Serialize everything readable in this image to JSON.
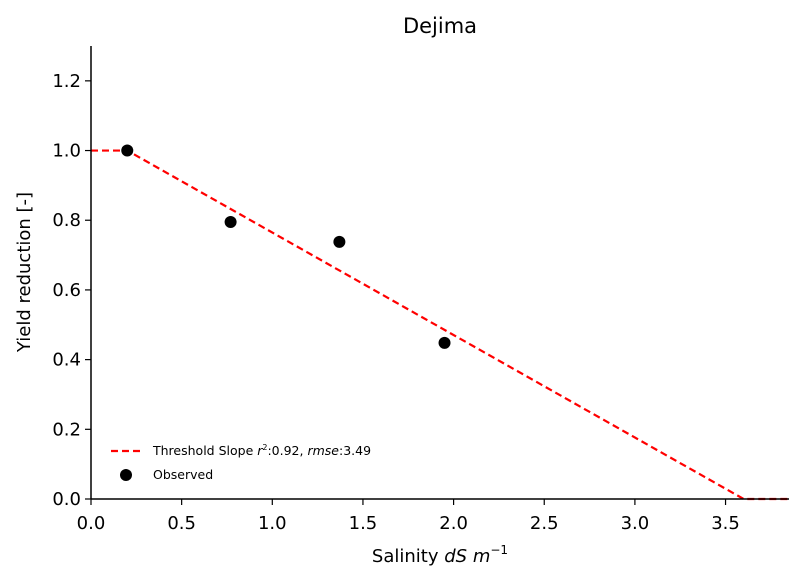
{
  "chart_data": {
    "type": "scatter",
    "title": "Dejima",
    "xlabel": "Salinity dS m⁻¹",
    "xlabel_parts": {
      "prefix": "Salinity ",
      "var1": "dS",
      "space": " ",
      "var2": "m",
      "exp": "−1"
    },
    "ylabel": "Yield reduction [-]",
    "xlim": [
      0.0,
      3.85
    ],
    "ylim": [
      0.0,
      1.3
    ],
    "xticks": [
      0.0,
      0.5,
      1.0,
      1.5,
      2.0,
      2.5,
      3.0,
      3.5
    ],
    "xtick_labels": [
      "0.0",
      "0.5",
      "1.0",
      "1.5",
      "2.0",
      "2.5",
      "3.0",
      "3.5"
    ],
    "yticks": [
      0.0,
      0.2,
      0.4,
      0.6,
      0.8,
      1.0,
      1.2
    ],
    "ytick_labels": [
      "0.0",
      "0.2",
      "0.4",
      "0.6",
      "0.8",
      "1.0",
      "1.2"
    ],
    "grid": false,
    "legend_position": "lower-left",
    "series": [
      {
        "name": "Threshold Slope",
        "kind": "line",
        "style": "dashed",
        "color": "#ff0000",
        "x": [
          0.0,
          0.2,
          3.6,
          3.85
        ],
        "y": [
          1.0,
          1.0,
          0.0,
          0.0
        ]
      },
      {
        "name": "Observed",
        "kind": "scatter",
        "color": "#000000",
        "x": [
          0.2,
          0.77,
          1.37,
          1.95
        ],
        "y": [
          1.0,
          0.795,
          0.738,
          0.448
        ]
      }
    ],
    "legend": {
      "line_label_prefix": "Threshold Slope ",
      "r2_symbol": "r",
      "r2_exp": "2",
      "r2_value": ":0.92, ",
      "rmse_symbol": "rmse",
      "rmse_value": ":3.49",
      "scatter_label": "Observed"
    }
  }
}
